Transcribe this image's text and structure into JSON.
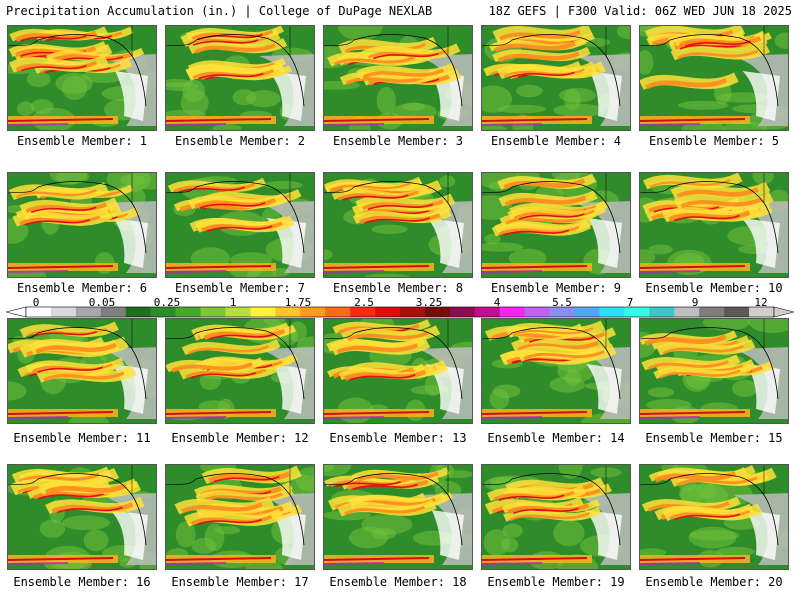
{
  "header": {
    "title_left": "Precipitation Accumulation (in.) | College of DuPage NEXLAB",
    "title_right": "18Z GEFS | F300 Valid: 06Z WED JUN 18 2025"
  },
  "panels": [
    {
      "label": "Ensemble Member: 1"
    },
    {
      "label": "Ensemble Member: 2"
    },
    {
      "label": "Ensemble Member: 3"
    },
    {
      "label": "Ensemble Member: 4"
    },
    {
      "label": "Ensemble Member: 5"
    },
    {
      "label": "Ensemble Member: 6"
    },
    {
      "label": "Ensemble Member: 7"
    },
    {
      "label": "Ensemble Member: 8"
    },
    {
      "label": "Ensemble Member: 9"
    },
    {
      "label": "Ensemble Member: 10"
    },
    {
      "label": "Ensemble Member: 11"
    },
    {
      "label": "Ensemble Member: 12"
    },
    {
      "label": "Ensemble Member: 13"
    },
    {
      "label": "Ensemble Member: 14"
    },
    {
      "label": "Ensemble Member: 15"
    },
    {
      "label": "Ensemble Member: 16"
    },
    {
      "label": "Ensemble Member: 17"
    },
    {
      "label": "Ensemble Member: 18"
    },
    {
      "label": "Ensemble Member: 19"
    },
    {
      "label": "Ensemble Member: 20"
    }
  ],
  "colorbar": {
    "tick_labels": [
      "0",
      "0.05",
      "0.25",
      "1",
      "1.75",
      "2.5",
      "3.25",
      "4",
      "5.5",
      "7",
      "9",
      "12"
    ],
    "colors": [
      "#ffffff",
      "#d9d9d9",
      "#a8a8a8",
      "#7f7f7f",
      "#1e6f1e",
      "#2e8b2e",
      "#48a82e",
      "#7cc83a",
      "#b8e03c",
      "#fff23a",
      "#ffc42a",
      "#ff9a1e",
      "#ff6a16",
      "#ff2a10",
      "#e00c0c",
      "#b00a0a",
      "#7a0a0a",
      "#900a50",
      "#c80a90",
      "#ff22ff",
      "#c060ff",
      "#8c8cff",
      "#4fa8ff",
      "#2ee0ff",
      "#30ffe6",
      "#3cc8c8",
      "#bfbfbf",
      "#7e7e7e",
      "#5a5a5a",
      "#cfcfcf"
    ]
  }
}
